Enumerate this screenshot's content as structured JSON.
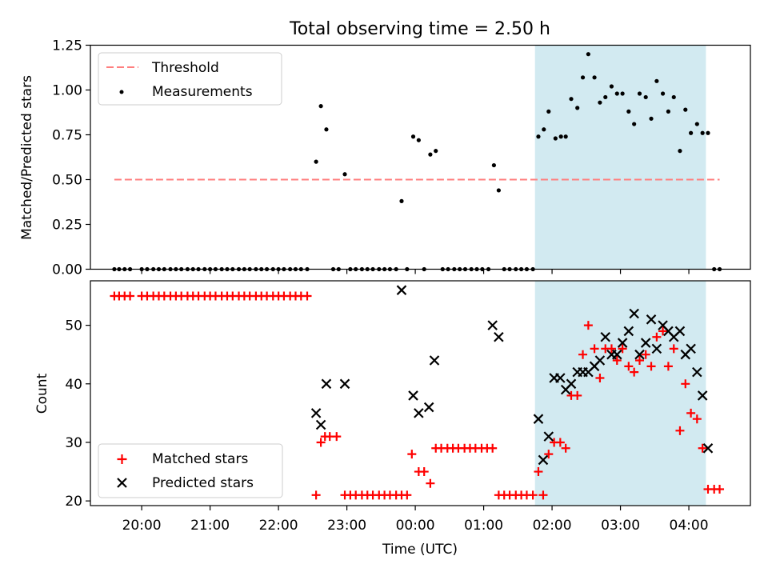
{
  "title": "Total observing time = 2.50 h",
  "colors": {
    "threshold": "#ff7f7f",
    "measurement": "#000000",
    "matched": "#ff0000",
    "predicted": "#000000",
    "observing_span": "#add8e6"
  },
  "chart_data": [
    {
      "type": "scatter",
      "ylabel": "Matched/Predicted stars",
      "ylim": [
        0,
        1.25
      ],
      "yticks": [
        0,
        0.25,
        0.5,
        0.75,
        1.0,
        1.25
      ],
      "ytick_labels": [
        "0.00",
        "0.25",
        "0.50",
        "0.75",
        "1.00",
        "1.25"
      ],
      "xlim_hours": [
        19.25,
        28.9
      ],
      "legend_position": "upper-left",
      "shaded_span_hours": [
        25.75,
        28.25
      ],
      "threshold": {
        "name": "Threshold",
        "value": 0.5,
        "x_hours": [
          19.6,
          28.45
        ]
      },
      "series": [
        {
          "name": "Measurements",
          "points": [
            [
              19.6,
              0
            ],
            [
              19.67,
              0
            ],
            [
              19.75,
              0
            ],
            [
              19.83,
              0
            ],
            [
              20.0,
              0
            ],
            [
              20.08,
              0
            ],
            [
              20.17,
              0
            ],
            [
              20.25,
              0
            ],
            [
              20.33,
              0
            ],
            [
              20.42,
              0
            ],
            [
              20.5,
              0
            ],
            [
              20.58,
              0
            ],
            [
              20.67,
              0
            ],
            [
              20.75,
              0
            ],
            [
              20.83,
              0
            ],
            [
              20.92,
              0
            ],
            [
              21.0,
              0
            ],
            [
              21.08,
              0
            ],
            [
              21.17,
              0
            ],
            [
              21.25,
              0
            ],
            [
              21.33,
              0
            ],
            [
              21.42,
              0
            ],
            [
              21.5,
              0
            ],
            [
              21.58,
              0
            ],
            [
              21.67,
              0
            ],
            [
              21.75,
              0
            ],
            [
              21.83,
              0
            ],
            [
              21.92,
              0
            ],
            [
              22.0,
              0
            ],
            [
              22.08,
              0
            ],
            [
              22.17,
              0
            ],
            [
              22.25,
              0
            ],
            [
              22.33,
              0
            ],
            [
              22.42,
              0
            ],
            [
              22.55,
              0.6
            ],
            [
              22.62,
              0.91
            ],
            [
              22.7,
              0.78
            ],
            [
              22.8,
              0
            ],
            [
              22.88,
              0
            ],
            [
              22.97,
              0.53
            ],
            [
              23.05,
              0
            ],
            [
              23.13,
              0
            ],
            [
              23.22,
              0
            ],
            [
              23.3,
              0
            ],
            [
              23.38,
              0
            ],
            [
              23.47,
              0
            ],
            [
              23.55,
              0
            ],
            [
              23.63,
              0
            ],
            [
              23.72,
              0
            ],
            [
              23.8,
              0.38
            ],
            [
              23.88,
              0
            ],
            [
              23.97,
              0.74
            ],
            [
              24.05,
              0.72
            ],
            [
              24.13,
              0
            ],
            [
              24.22,
              0.64
            ],
            [
              24.3,
              0.66
            ],
            [
              24.4,
              0
            ],
            [
              24.48,
              0
            ],
            [
              24.57,
              0
            ],
            [
              24.65,
              0
            ],
            [
              24.73,
              0
            ],
            [
              24.82,
              0
            ],
            [
              24.9,
              0
            ],
            [
              24.98,
              0
            ],
            [
              25.07,
              0
            ],
            [
              25.15,
              0.58
            ],
            [
              25.22,
              0.44
            ],
            [
              25.3,
              0
            ],
            [
              25.38,
              0
            ],
            [
              25.47,
              0
            ],
            [
              25.55,
              0
            ],
            [
              25.63,
              0
            ],
            [
              25.72,
              0
            ],
            [
              25.8,
              0.74
            ],
            [
              25.88,
              0.78
            ],
            [
              25.95,
              0.88
            ],
            [
              26.05,
              0.73
            ],
            [
              26.13,
              0.74
            ],
            [
              26.2,
              0.74
            ],
            [
              26.28,
              0.95
            ],
            [
              26.37,
              0.9
            ],
            [
              26.45,
              1.07
            ],
            [
              26.53,
              1.2
            ],
            [
              26.62,
              1.07
            ],
            [
              26.7,
              0.93
            ],
            [
              26.78,
              0.96
            ],
            [
              26.87,
              1.02
            ],
            [
              26.95,
              0.98
            ],
            [
              27.03,
              0.98
            ],
            [
              27.12,
              0.88
            ],
            [
              27.2,
              0.81
            ],
            [
              27.28,
              0.98
            ],
            [
              27.37,
              0.96
            ],
            [
              27.45,
              0.84
            ],
            [
              27.53,
              1.05
            ],
            [
              27.62,
              0.98
            ],
            [
              27.7,
              0.88
            ],
            [
              27.78,
              0.96
            ],
            [
              27.87,
              0.66
            ],
            [
              27.95,
              0.89
            ],
            [
              28.03,
              0.76
            ],
            [
              28.12,
              0.81
            ],
            [
              28.2,
              0.76
            ],
            [
              28.28,
              0.76
            ],
            [
              28.37,
              0
            ],
            [
              28.45,
              0
            ]
          ]
        }
      ]
    },
    {
      "type": "scatter",
      "ylabel": "Count",
      "xlabel": "Time (UTC)",
      "ylim": [
        19.2,
        57.6
      ],
      "yticks": [
        20,
        30,
        40,
        50
      ],
      "ytick_labels": [
        "20",
        "30",
        "40",
        "50"
      ],
      "xlim_hours": [
        19.25,
        28.9
      ],
      "xticks_hours": [
        20,
        21,
        22,
        23,
        24,
        25,
        26,
        27,
        28
      ],
      "xtick_labels": [
        "20:00",
        "21:00",
        "22:00",
        "23:00",
        "00:00",
        "01:00",
        "02:00",
        "03:00",
        "04:00"
      ],
      "legend_position": "lower-left",
      "shaded_span_hours": [
        25.75,
        28.25
      ],
      "series": [
        {
          "name": "Matched stars",
          "marker": "plus",
          "points": [
            [
              19.6,
              55
            ],
            [
              19.67,
              55
            ],
            [
              19.75,
              55
            ],
            [
              19.83,
              55
            ],
            [
              20.0,
              55
            ],
            [
              20.08,
              55
            ],
            [
              20.17,
              55
            ],
            [
              20.25,
              55
            ],
            [
              20.33,
              55
            ],
            [
              20.42,
              55
            ],
            [
              20.5,
              55
            ],
            [
              20.58,
              55
            ],
            [
              20.67,
              55
            ],
            [
              20.75,
              55
            ],
            [
              20.83,
              55
            ],
            [
              20.92,
              55
            ],
            [
              21.0,
              55
            ],
            [
              21.08,
              55
            ],
            [
              21.17,
              55
            ],
            [
              21.25,
              55
            ],
            [
              21.33,
              55
            ],
            [
              21.42,
              55
            ],
            [
              21.5,
              55
            ],
            [
              21.58,
              55
            ],
            [
              21.67,
              55
            ],
            [
              21.75,
              55
            ],
            [
              21.83,
              55
            ],
            [
              21.92,
              55
            ],
            [
              22.0,
              55
            ],
            [
              22.08,
              55
            ],
            [
              22.17,
              55
            ],
            [
              22.25,
              55
            ],
            [
              22.33,
              55
            ],
            [
              22.42,
              55
            ],
            [
              22.55,
              21
            ],
            [
              22.62,
              30
            ],
            [
              22.68,
              31
            ],
            [
              22.75,
              31
            ],
            [
              22.85,
              31
            ],
            [
              22.97,
              21
            ],
            [
              23.05,
              21
            ],
            [
              23.13,
              21
            ],
            [
              23.22,
              21
            ],
            [
              23.3,
              21
            ],
            [
              23.38,
              21
            ],
            [
              23.47,
              21
            ],
            [
              23.55,
              21
            ],
            [
              23.63,
              21
            ],
            [
              23.72,
              21
            ],
            [
              23.8,
              21
            ],
            [
              23.88,
              21
            ],
            [
              23.95,
              28
            ],
            [
              24.05,
              25
            ],
            [
              24.13,
              25
            ],
            [
              24.22,
              23
            ],
            [
              24.3,
              29
            ],
            [
              24.38,
              29
            ],
            [
              24.47,
              29
            ],
            [
              24.55,
              29
            ],
            [
              24.63,
              29
            ],
            [
              24.72,
              29
            ],
            [
              24.8,
              29
            ],
            [
              24.88,
              29
            ],
            [
              24.97,
              29
            ],
            [
              25.05,
              29
            ],
            [
              25.13,
              29
            ],
            [
              25.22,
              21
            ],
            [
              25.3,
              21
            ],
            [
              25.38,
              21
            ],
            [
              25.47,
              21
            ],
            [
              25.55,
              21
            ],
            [
              25.63,
              21
            ],
            [
              25.72,
              21
            ],
            [
              25.8,
              25
            ],
            [
              25.87,
              21
            ],
            [
              25.95,
              28
            ],
            [
              26.03,
              30
            ],
            [
              26.12,
              30
            ],
            [
              26.2,
              29
            ],
            [
              26.28,
              38
            ],
            [
              26.37,
              38
            ],
            [
              26.45,
              45
            ],
            [
              26.53,
              50
            ],
            [
              26.62,
              46
            ],
            [
              26.7,
              41
            ],
            [
              26.78,
              46
            ],
            [
              26.87,
              46
            ],
            [
              26.95,
              44
            ],
            [
              27.03,
              46
            ],
            [
              27.12,
              43
            ],
            [
              27.2,
              42
            ],
            [
              27.28,
              44
            ],
            [
              27.37,
              45
            ],
            [
              27.45,
              43
            ],
            [
              27.53,
              48
            ],
            [
              27.62,
              49
            ],
            [
              27.7,
              43
            ],
            [
              27.78,
              46
            ],
            [
              27.87,
              32
            ],
            [
              27.95,
              40
            ],
            [
              28.03,
              35
            ],
            [
              28.12,
              34
            ],
            [
              28.2,
              29
            ],
            [
              28.28,
              22
            ],
            [
              28.37,
              22
            ],
            [
              28.45,
              22
            ]
          ]
        },
        {
          "name": "Predicted stars",
          "marker": "x",
          "points": [
            [
              22.55,
              35
            ],
            [
              22.62,
              33
            ],
            [
              22.7,
              40
            ],
            [
              22.97,
              40
            ],
            [
              23.8,
              56
            ],
            [
              23.97,
              38
            ],
            [
              24.05,
              35
            ],
            [
              24.2,
              36
            ],
            [
              24.28,
              44
            ],
            [
              25.13,
              50
            ],
            [
              25.22,
              48
            ],
            [
              25.8,
              34
            ],
            [
              25.87,
              27
            ],
            [
              25.95,
              31
            ],
            [
              26.03,
              41
            ],
            [
              26.12,
              41
            ],
            [
              26.2,
              39
            ],
            [
              26.28,
              40
            ],
            [
              26.37,
              42
            ],
            [
              26.45,
              42
            ],
            [
              26.53,
              42
            ],
            [
              26.62,
              43
            ],
            [
              26.7,
              44
            ],
            [
              26.78,
              48
            ],
            [
              26.87,
              45
            ],
            [
              26.95,
              45
            ],
            [
              27.03,
              47
            ],
            [
              27.12,
              49
            ],
            [
              27.2,
              52
            ],
            [
              27.28,
              45
            ],
            [
              27.37,
              47
            ],
            [
              27.45,
              51
            ],
            [
              27.53,
              46
            ],
            [
              27.62,
              50
            ],
            [
              27.7,
              49
            ],
            [
              27.78,
              48
            ],
            [
              27.87,
              49
            ],
            [
              27.95,
              45
            ],
            [
              28.03,
              46
            ],
            [
              28.12,
              42
            ],
            [
              28.2,
              38
            ],
            [
              28.28,
              29
            ]
          ]
        }
      ]
    }
  ]
}
